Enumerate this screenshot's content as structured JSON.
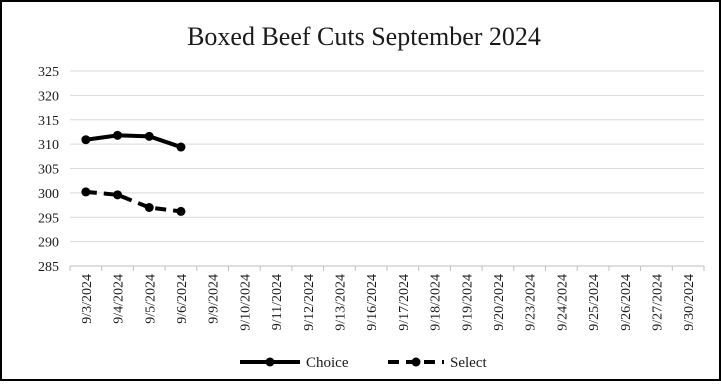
{
  "chart_data": {
    "type": "line",
    "title": "Boxed Beef Cuts September 2024",
    "xlabel": "",
    "ylabel": "",
    "categories": [
      "9/3/2024",
      "9/4/2024",
      "9/5/2024",
      "9/6/2024",
      "9/9/2024",
      "9/10/2024",
      "9/11/2024",
      "9/12/2024",
      "9/13/2024",
      "9/16/2024",
      "9/17/2024",
      "9/18/2024",
      "9/19/2024",
      "9/20/2024",
      "9/23/2024",
      "9/24/2024",
      "9/25/2024",
      "9/26/2024",
      "9/27/2024",
      "9/30/2024"
    ],
    "series": [
      {
        "name": "Choice",
        "style": "solid",
        "color": "#000000",
        "values": [
          310.9,
          311.8,
          311.6,
          309.4,
          null,
          null,
          null,
          null,
          null,
          null,
          null,
          null,
          null,
          null,
          null,
          null,
          null,
          null,
          null,
          null
        ]
      },
      {
        "name": "Select",
        "style": "dashed",
        "color": "#000000",
        "values": [
          300.2,
          299.6,
          297.0,
          296.2,
          null,
          null,
          null,
          null,
          null,
          null,
          null,
          null,
          null,
          null,
          null,
          null,
          null,
          null,
          null,
          null
        ]
      }
    ],
    "ylim": [
      285,
      325
    ],
    "yticks": [
      285,
      290,
      295,
      300,
      305,
      310,
      315,
      320,
      325
    ],
    "grid": true,
    "legend_position": "bottom"
  }
}
